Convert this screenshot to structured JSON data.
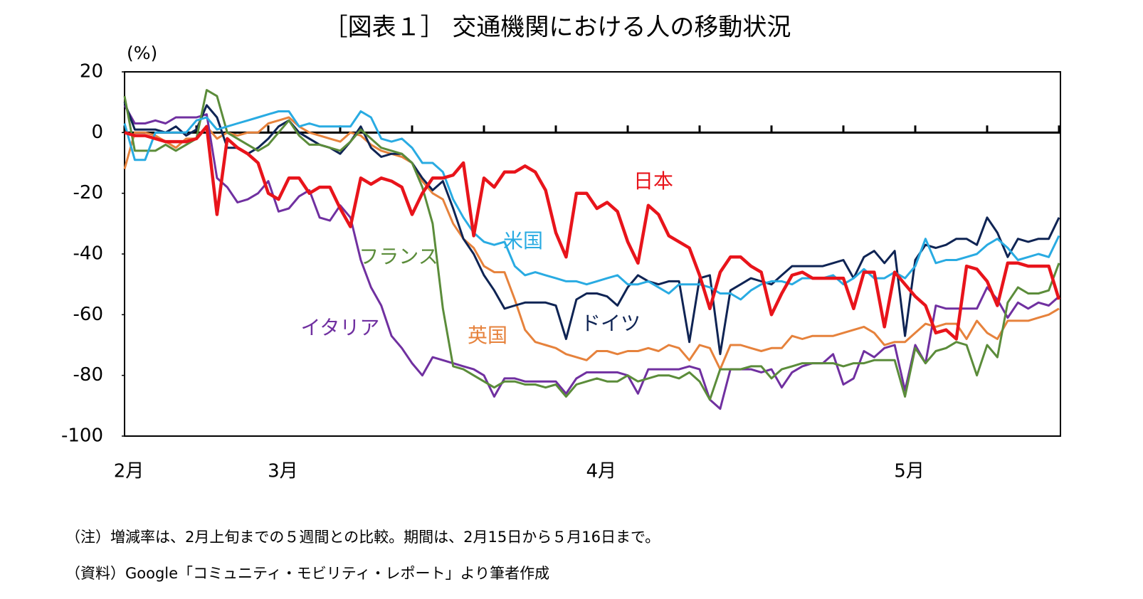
{
  "chart_data": {
    "type": "line",
    "title": "［図表１］ 交通機関における人の移動状況",
    "y_unit": "(%)",
    "notes": [
      "（注）増減率は、2月上旬までの５週間との比較。期間は、2月15日から５月16日まで。",
      "（資料）Google「コミュニティ・モビリティ・レポート」より筆者作成"
    ],
    "ylim": [
      -100,
      20
    ],
    "yticks": [
      20,
      0,
      -20,
      -40,
      -60,
      -80,
      -100
    ],
    "grid": false,
    "categories": [
      "2月",
      null,
      null,
      null,
      null,
      null,
      null,
      null,
      null,
      null,
      null,
      null,
      null,
      null,
      null,
      "3月",
      null,
      null,
      null,
      null,
      null,
      null,
      null,
      null,
      null,
      null,
      null,
      null,
      null,
      null,
      null,
      null,
      null,
      null,
      null,
      null,
      null,
      null,
      null,
      null,
      null,
      null,
      null,
      null,
      null,
      null,
      "4月",
      null,
      null,
      null,
      null,
      null,
      null,
      null,
      null,
      null,
      null,
      null,
      null,
      null,
      null,
      null,
      null,
      null,
      null,
      null,
      null,
      null,
      null,
      null,
      null,
      null,
      null,
      null,
      null,
      null,
      "5月",
      null,
      null,
      null,
      null,
      null,
      null,
      null,
      null,
      null,
      null,
      null,
      null,
      null,
      null,
      null
    ],
    "series": [
      {
        "name": "日本",
        "color": "#e8141b",
        "values": [
          0,
          -1,
          -1,
          -2,
          -3,
          -3,
          -3,
          -2,
          2,
          -27,
          -2,
          -5,
          -7,
          -10,
          -20,
          -22,
          -15,
          -15,
          -20,
          -18,
          -18,
          -25,
          -31,
          -15,
          -17,
          -15,
          -16,
          -18,
          -27,
          -20,
          -15,
          -15,
          -14,
          -10,
          -34,
          -15,
          -18,
          -13,
          -13,
          -11,
          -13,
          -19,
          -33,
          -41,
          -20,
          -20,
          -25,
          -23,
          -26,
          -36,
          -43,
          -24,
          -27,
          -34,
          -36,
          -38,
          -47,
          -58,
          -46,
          -41,
          -41,
          -44,
          -46,
          -60,
          -53,
          -47,
          -46,
          -48,
          -48,
          -48,
          -48,
          -58,
          -46,
          -46,
          -64,
          -46,
          -50,
          -54,
          -57,
          -66,
          -65,
          -68,
          -44,
          -45,
          -49,
          -57,
          -43,
          -43,
          -44,
          -44,
          -44,
          -55
        ]
      },
      {
        "name": "米国",
        "color": "#29abe2",
        "values": [
          3,
          -9,
          -9,
          0,
          0,
          0,
          0,
          4,
          5,
          1,
          2,
          3,
          4,
          5,
          6,
          7,
          7,
          2,
          3,
          2,
          2,
          2,
          2,
          7,
          5,
          -2,
          -3,
          -2,
          -5,
          -10,
          -10,
          -13,
          -22,
          -28,
          -33,
          -36,
          -37,
          -36,
          -44,
          -47,
          -46,
          -47,
          -48,
          -49,
          -49,
          -50,
          -49,
          -48,
          -47,
          -50,
          -50,
          -49,
          -51,
          -53,
          -50,
          -50,
          -50,
          -51,
          -53,
          -53,
          -55,
          -52,
          -50,
          -49,
          -49,
          -50,
          -48,
          -48,
          -48,
          -47,
          -50,
          -48,
          -45,
          -48,
          -48,
          -46,
          -48,
          -44,
          -35,
          -43,
          -42,
          -42,
          -41,
          -40,
          -37,
          -35,
          -38,
          -42,
          -41,
          -40,
          -41,
          -34
        ]
      },
      {
        "name": "フランス",
        "color": "#5b8c3a",
        "values": [
          12,
          -6,
          -6,
          -6,
          -4,
          -6,
          -4,
          -2,
          14,
          12,
          0,
          -2,
          -4,
          -6,
          -4,
          0,
          4,
          -1,
          -4,
          -4,
          -5,
          -6,
          -3,
          1,
          -2,
          -5,
          -6,
          -7,
          -10,
          -18,
          -30,
          -58,
          -77,
          -78,
          -80,
          -82,
          -84,
          -82,
          -82,
          -83,
          -83,
          -84,
          -83,
          -87,
          -83,
          -82,
          -81,
          -82,
          -82,
          -80,
          -82,
          -81,
          -80,
          -80,
          -81,
          -79,
          -82,
          -88,
          -78,
          -78,
          -78,
          -77,
          -77,
          -81,
          -78,
          -77,
          -76,
          -76,
          -76,
          -76,
          -77,
          -76,
          -76,
          -75,
          -75,
          -75,
          -87,
          -71,
          -76,
          -72,
          -71,
          -69,
          -70,
          -80,
          -70,
          -74,
          -56,
          -51,
          -53,
          -53,
          -52,
          -43
        ]
      },
      {
        "name": "ドイツ",
        "color": "#0f2454",
        "values": [
          10,
          1,
          1,
          1,
          0,
          2,
          -1,
          1,
          9,
          5,
          -5,
          -5,
          -7,
          -5,
          -2,
          2,
          4,
          0,
          -2,
          -4,
          -5,
          -7,
          -3,
          2,
          -5,
          -8,
          -7,
          -7,
          -10,
          -15,
          -19,
          -16,
          -25,
          -35,
          -40,
          -47,
          -52,
          -58,
          -57,
          -56,
          -56,
          -56,
          -57,
          -68,
          -55,
          -53,
          -53,
          -54,
          -57,
          -51,
          -47,
          -49,
          -50,
          -49,
          -49,
          -69,
          -48,
          -47,
          -73,
          -52,
          -50,
          -48,
          -49,
          -50,
          -47,
          -44,
          -44,
          -44,
          -44,
          -43,
          -42,
          -48,
          -41,
          -39,
          -43,
          -39,
          -67,
          -42,
          -37,
          -38,
          -37,
          -35,
          -35,
          -37,
          -28,
          -33,
          -41,
          -35,
          -36,
          -35,
          -35,
          -28
        ]
      },
      {
        "name": "イタリア",
        "color": "#7030a0",
        "values": [
          9,
          3,
          3,
          4,
          3,
          5,
          5,
          5,
          6,
          -15,
          -18,
          -23,
          -22,
          -20,
          -16,
          -26,
          -25,
          -21,
          -19,
          -28,
          -29,
          -24,
          -28,
          -42,
          -51,
          -57,
          -67,
          -71,
          -76,
          -80,
          -74,
          -75,
          -76,
          -77,
          -78,
          -80,
          -87,
          -81,
          -81,
          -82,
          -82,
          -82,
          -82,
          -86,
          -81,
          -79,
          -79,
          -79,
          -79,
          -80,
          -86,
          -78,
          -78,
          -78,
          -78,
          -77,
          -78,
          -88,
          -91,
          -78,
          -78,
          -78,
          -79,
          -78,
          -84,
          -79,
          -77,
          -76,
          -76,
          -73,
          -83,
          -81,
          -72,
          -74,
          -71,
          -70,
          -85,
          -70,
          -76,
          -57,
          -58,
          -58,
          -58,
          -58,
          -51,
          -55,
          -61,
          -56,
          -58,
          -56,
          -57,
          -54
        ]
      },
      {
        "name": "英国",
        "color": "#e6823c",
        "values": [
          -12,
          0,
          0,
          -1,
          -3,
          -5,
          -2,
          -2,
          2,
          -2,
          0,
          -1,
          0,
          0,
          3,
          4,
          5,
          2,
          0,
          -1,
          -2,
          -3,
          0,
          -1,
          -4,
          -6,
          -7,
          -8,
          -10,
          -16,
          -20,
          -22,
          -30,
          -35,
          -38,
          -44,
          -46,
          -46,
          -55,
          -65,
          -69,
          -70,
          -71,
          -73,
          -74,
          -75,
          -72,
          -72,
          -73,
          -72,
          -72,
          -71,
          -72,
          -70,
          -71,
          -75,
          -70,
          -71,
          -78,
          -70,
          -70,
          -71,
          -72,
          -71,
          -71,
          -67,
          -68,
          -67,
          -67,
          -67,
          -66,
          -65,
          -64,
          -66,
          -70,
          -69,
          -69,
          -66,
          -63,
          -64,
          -63,
          -63,
          -68,
          -62,
          -66,
          -68,
          -62,
          -62,
          -62,
          -61,
          -60,
          -58
        ]
      }
    ]
  }
}
